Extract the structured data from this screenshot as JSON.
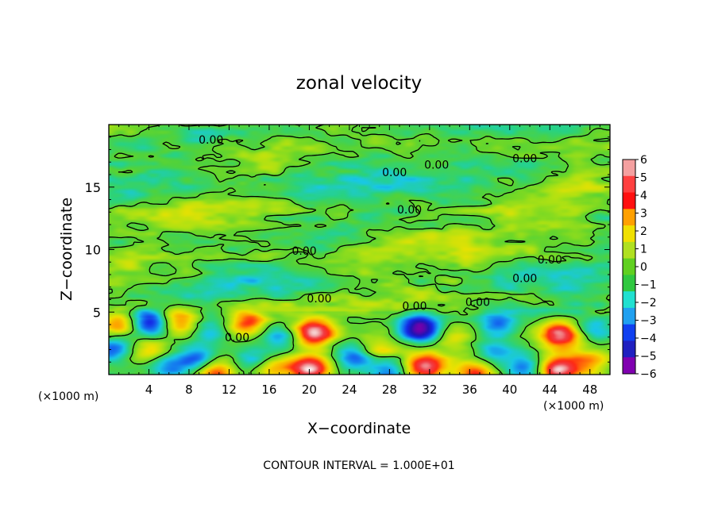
{
  "chart_data": {
    "type": "heatmap",
    "title": "zonal velocity",
    "xlabel": "X−coordinate",
    "ylabel": "Z−coordinate",
    "x_unit_label": "(×1000 m)",
    "x_unit_label_right": "(×1000 m)",
    "footer": "CONTOUR INTERVAL = 1.000E+01",
    "x_ticks": [
      "4",
      "8",
      "12",
      "16",
      "20",
      "24",
      "28",
      "32",
      "36",
      "40",
      "44",
      "48"
    ],
    "x_tick_values": [
      4,
      8,
      12,
      16,
      20,
      24,
      28,
      32,
      36,
      40,
      44,
      48
    ],
    "y_ticks": [
      "5",
      "10",
      "15"
    ],
    "y_tick_values": [
      5,
      10,
      15
    ],
    "xlim": [
      0,
      50
    ],
    "ylim": [
      0,
      20
    ],
    "colorbar": {
      "labels": [
        "6",
        "5",
        "4",
        "3",
        "2",
        "1",
        "0",
        "−1",
        "−2",
        "−3",
        "−4",
        "−5",
        "−6"
      ],
      "values": [
        6,
        5,
        4,
        3,
        2,
        1,
        0,
        -1,
        -2,
        -3,
        -4,
        -5,
        -6
      ],
      "colors_top_to_bottom": [
        "#f4a0a0",
        "#ff4040",
        "#ff1010",
        "#ffa000",
        "#f0e000",
        "#b0e020",
        "#60d020",
        "#30c840",
        "#20e0d0",
        "#20a0f0",
        "#1040f0",
        "#2020c0",
        "#8000b0"
      ]
    },
    "contour_label": "0.00",
    "contour_labels": [
      {
        "text": "0.00",
        "x": 10.2,
        "z": 18.8
      },
      {
        "text": "0.00",
        "x": 28.5,
        "z": 16.2
      },
      {
        "text": "0.00",
        "x": 32.7,
        "z": 16.8
      },
      {
        "text": "0.00",
        "x": 41.5,
        "z": 17.3
      },
      {
        "text": "0.00",
        "x": 30.0,
        "z": 13.2
      },
      {
        "text": "0.00",
        "x": 19.5,
        "z": 9.9
      },
      {
        "text": "0.00",
        "x": 44.0,
        "z": 9.2
      },
      {
        "text": "0.00",
        "x": 41.5,
        "z": 7.7
      },
      {
        "text": "0.00",
        "x": 21.0,
        "z": 6.1
      },
      {
        "text": "0.00",
        "x": 30.5,
        "z": 5.5
      },
      {
        "text": "0.00",
        "x": 36.8,
        "z": 5.8
      },
      {
        "text": "0.00",
        "x": 12.8,
        "z": 3.0
      }
    ],
    "features": [
      {
        "type": "max",
        "x": 20.5,
        "z": 3.3,
        "value": 6
      },
      {
        "type": "min",
        "x": 31.0,
        "z": 3.7,
        "value": -6
      },
      {
        "type": "max",
        "x": 45.0,
        "z": 3.2,
        "value": 6
      },
      {
        "type": "max",
        "x": 13.8,
        "z": 4.2,
        "value": 4
      },
      {
        "type": "min",
        "x": 4.2,
        "z": 4.1,
        "value": -4.5
      },
      {
        "type": "max",
        "x": 7.0,
        "z": 4.2,
        "value": 3.5
      },
      {
        "type": "max",
        "x": 1.0,
        "z": 4.0,
        "value": 3.0
      },
      {
        "type": "max",
        "x": 20.0,
        "z": 0.4,
        "value": 6
      },
      {
        "type": "max",
        "x": 31.5,
        "z": 0.7,
        "value": 6
      },
      {
        "type": "max",
        "x": 44.8,
        "z": 0.3,
        "value": 6
      },
      {
        "type": "max",
        "x": 4.0,
        "z": 2.0,
        "value": 2.5
      },
      {
        "type": "min",
        "x": 9.0,
        "z": 1.2,
        "value": -3.5
      },
      {
        "type": "min",
        "x": 14.5,
        "z": 1.0,
        "value": -3.0
      },
      {
        "type": "min",
        "x": 24.5,
        "z": 1.5,
        "value": -3.5
      },
      {
        "type": "max",
        "x": 27.0,
        "z": 2.2,
        "value": 2.5
      },
      {
        "type": "min",
        "x": 38.5,
        "z": 1.8,
        "value": -2.5
      },
      {
        "type": "max",
        "x": 10.5,
        "z": 0.2,
        "value": 4
      },
      {
        "type": "max",
        "x": 36.5,
        "z": 0.2,
        "value": 4
      },
      {
        "type": "min",
        "x": 10.0,
        "z": 3.8,
        "value": -2.0
      },
      {
        "type": "min",
        "x": 39.0,
        "z": 4.2,
        "value": -2.5
      },
      {
        "type": "min",
        "x": 17.0,
        "z": 3.0,
        "value": -2.5
      },
      {
        "type": "min",
        "x": 0.5,
        "z": 2.0,
        "value": -3.0
      },
      {
        "type": "min",
        "x": 48.5,
        "z": 3.5,
        "value": -2.5
      },
      {
        "type": "max",
        "x": 34.5,
        "z": 3.0,
        "value": 2.0
      },
      {
        "type": "min",
        "x": 6.0,
        "z": 0.5,
        "value": -3.0
      },
      {
        "type": "min",
        "x": 41.5,
        "z": 0.5,
        "value": -3.0
      },
      {
        "type": "max",
        "x": 16.0,
        "z": 0.4,
        "value": 3.0
      },
      {
        "type": "min",
        "x": 28.0,
        "z": 0.3,
        "value": -3.0
      },
      {
        "type": "max",
        "x": 48.0,
        "z": 1.0,
        "value": 3.0
      },
      {
        "type": "min",
        "x": 23.0,
        "z": 17.5,
        "value": -1.3
      },
      {
        "type": "min",
        "x": 22.0,
        "z": 14.8,
        "value": -1.0
      },
      {
        "type": "min",
        "x": 34.0,
        "z": 14.5,
        "value": -1.0
      },
      {
        "type": "min",
        "x": 6.0,
        "z": 16.0,
        "value": -1.0
      },
      {
        "type": "min",
        "x": 12.0,
        "z": 8.0,
        "value": -1.1
      },
      {
        "type": "max",
        "x": 30.0,
        "z": 11.0,
        "value": 0.8
      },
      {
        "type": "max",
        "x": 10.0,
        "z": 12.0,
        "value": 0.7
      },
      {
        "type": "max",
        "x": 42.0,
        "z": 12.5,
        "value": 0.7
      },
      {
        "type": "min",
        "x": 46.0,
        "z": 6.5,
        "value": -1.0
      },
      {
        "type": "max",
        "x": 18.0,
        "z": 18.0,
        "value": 0.6
      }
    ]
  }
}
